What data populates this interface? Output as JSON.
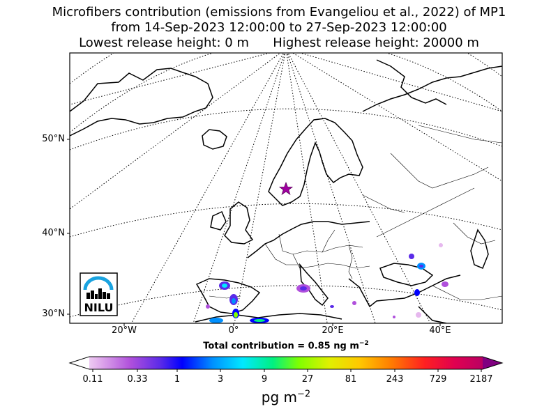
{
  "title": {
    "line1": "Microfibers contribution (emissions from Evangeliou et al., 2022) of MP1",
    "line2": "from 14-Sep-2023 12:00:00 to 27-Sep-2023 12:00:00",
    "line3": "Lowest release height: 0 m      Highest release height: 20000 m"
  },
  "map": {
    "lat_labels": [
      "50°N",
      "40°N",
      "30°N"
    ],
    "lon_labels": [
      "20°W",
      "0°",
      "20°E",
      "40°E"
    ],
    "release_site_marker": "star-icon",
    "marker_color": "#a000a0",
    "logo_text": "NILU",
    "logo_color": "#1aa3e0"
  },
  "total_contribution": {
    "label": "Total contribution = 0.85 ng m",
    "exponent": "−2"
  },
  "colorbar": {
    "ticks": [
      "0.11",
      "0.33",
      "1",
      "3",
      "9",
      "27",
      "81",
      "243",
      "729",
      "2187"
    ],
    "unit": "pg m",
    "unit_exponent": "−2",
    "colors": [
      "#ffffff",
      "#e6b8ee",
      "#b050dc",
      "#5a2ae8",
      "#0000ff",
      "#0090ff",
      "#00e8ff",
      "#00f080",
      "#80ff00",
      "#e0f000",
      "#ffc800",
      "#ff8000",
      "#ff2020",
      "#e00050",
      "#a00070",
      "#800080"
    ]
  }
}
